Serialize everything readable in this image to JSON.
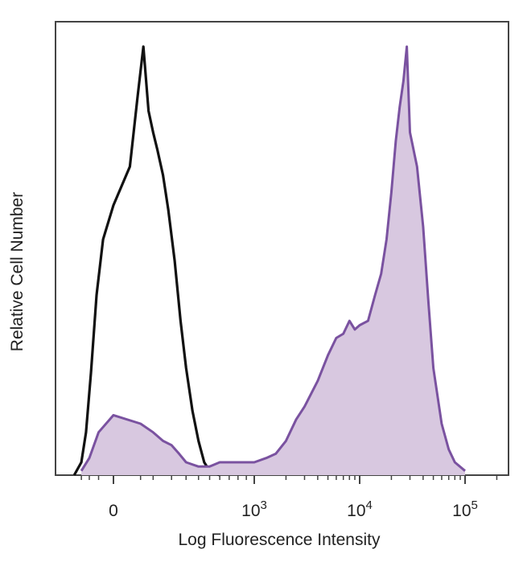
{
  "chart_data": {
    "type": "area",
    "title": "",
    "xlabel": "Log Fluorescence Intensity",
    "ylabel": "Relative Cell Number",
    "x_scale": "biexponential",
    "x_ticks": [
      {
        "value": 0,
        "label": "0",
        "exp": ""
      },
      {
        "value": 1000,
        "label": "10",
        "exp": "3"
      },
      {
        "value": 10000,
        "label": "10",
        "exp": "4"
      },
      {
        "value": 100000,
        "label": "10",
        "exp": "5"
      }
    ],
    "ylim": [
      0,
      100
    ],
    "grid": false,
    "legend": "none",
    "series": [
      {
        "style": "outline",
        "color": "#111111",
        "x": [
          -200,
          -150,
          -120,
          -90,
          -60,
          -30,
          0,
          20,
          40,
          60,
          80,
          100,
          120,
          150,
          180,
          220,
          260,
          300,
          350,
          400,
          450,
          500,
          600
        ],
        "values": [
          0,
          3,
          10,
          24,
          42,
          55,
          63,
          72,
          88,
          100,
          85,
          80,
          76,
          70,
          62,
          50,
          36,
          25,
          15,
          8,
          3,
          1,
          0
        ]
      },
      {
        "style": "filled",
        "color": "#7a52a0",
        "fill": "#d8c8e0",
        "x": [
          -150,
          -100,
          -50,
          0,
          50,
          100,
          150,
          200,
          250,
          300,
          400,
          500,
          600,
          800,
          1000,
          1300,
          1600,
          2000,
          2500,
          3000,
          4000,
          5000,
          6000,
          7000,
          8000,
          9000,
          10000,
          12000,
          14000,
          16000,
          18000,
          20000,
          22000,
          24000,
          26000,
          28000,
          30000,
          35000,
          40000,
          45000,
          50000,
          60000,
          70000,
          80000,
          100000
        ],
        "values": [
          1,
          4,
          10,
          14,
          12,
          10,
          8,
          7,
          5,
          3,
          2,
          2,
          3,
          3,
          3,
          4,
          5,
          8,
          13,
          16,
          22,
          28,
          32,
          33,
          36,
          34,
          35,
          36,
          42,
          47,
          55,
          66,
          78,
          86,
          92,
          100,
          80,
          72,
          58,
          40,
          25,
          12,
          6,
          3,
          1
        ]
      }
    ]
  }
}
